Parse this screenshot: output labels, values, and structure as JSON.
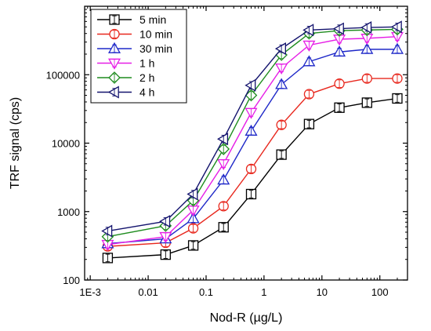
{
  "chart_data": {
    "type": "line",
    "xlabel": "Nod-R (µg/L)",
    "ylabel": "TRF signal (cps)",
    "xscale": "log",
    "yscale": "log",
    "xlim": [
      0.0008,
      300
    ],
    "ylim": [
      100,
      1000000
    ],
    "x_ticks": [
      {
        "value": 0.001,
        "label": "1E-3"
      },
      {
        "value": 0.01,
        "label": "0.01"
      },
      {
        "value": 0.1,
        "label": "0.1"
      },
      {
        "value": 1,
        "label": "1"
      },
      {
        "value": 10,
        "label": "10"
      },
      {
        "value": 100,
        "label": "100"
      }
    ],
    "y_ticks": [
      {
        "value": 100,
        "label": "100"
      },
      {
        "value": 1000,
        "label": "1000"
      },
      {
        "value": 10000,
        "label": "10000"
      },
      {
        "value": 100000,
        "label": "100000"
      }
    ],
    "legend_position": "top-left",
    "x": [
      0.002,
      0.02,
      0.06,
      0.2,
      0.6,
      2,
      6,
      20,
      60,
      200
    ],
    "series": [
      {
        "name": "5 min",
        "color": "#000000",
        "marker": "square",
        "values": [
          210,
          235,
          320,
          590,
          1800,
          6800,
          19000,
          33000,
          39000,
          45000
        ]
      },
      {
        "name": "10 min",
        "color": "#e8281e",
        "marker": "circle",
        "values": [
          310,
          350,
          570,
          1200,
          4200,
          18500,
          52000,
          74000,
          88000,
          88000
        ]
      },
      {
        "name": "30 min",
        "color": "#1e28c8",
        "marker": "triangle-up",
        "values": [
          340,
          400,
          790,
          2900,
          15000,
          72000,
          155000,
          215000,
          235000,
          235000
        ]
      },
      {
        "name": "1 h",
        "color": "#e61ee6",
        "marker": "triangle-down",
        "values": [
          330,
          430,
          1050,
          5000,
          28000,
          125000,
          270000,
          330000,
          340000,
          360000
        ]
      },
      {
        "name": "2 h",
        "color": "#1e8c1e",
        "marker": "diamond",
        "values": [
          430,
          620,
          1450,
          8200,
          50000,
          195000,
          400000,
          440000,
          450000,
          460000
        ]
      },
      {
        "name": "4 h",
        "color": "#14146e",
        "marker": "triangle-left",
        "values": [
          520,
          720,
          1800,
          11500,
          70000,
          240000,
          450000,
          470000,
          490000,
          500000
        ]
      }
    ]
  }
}
